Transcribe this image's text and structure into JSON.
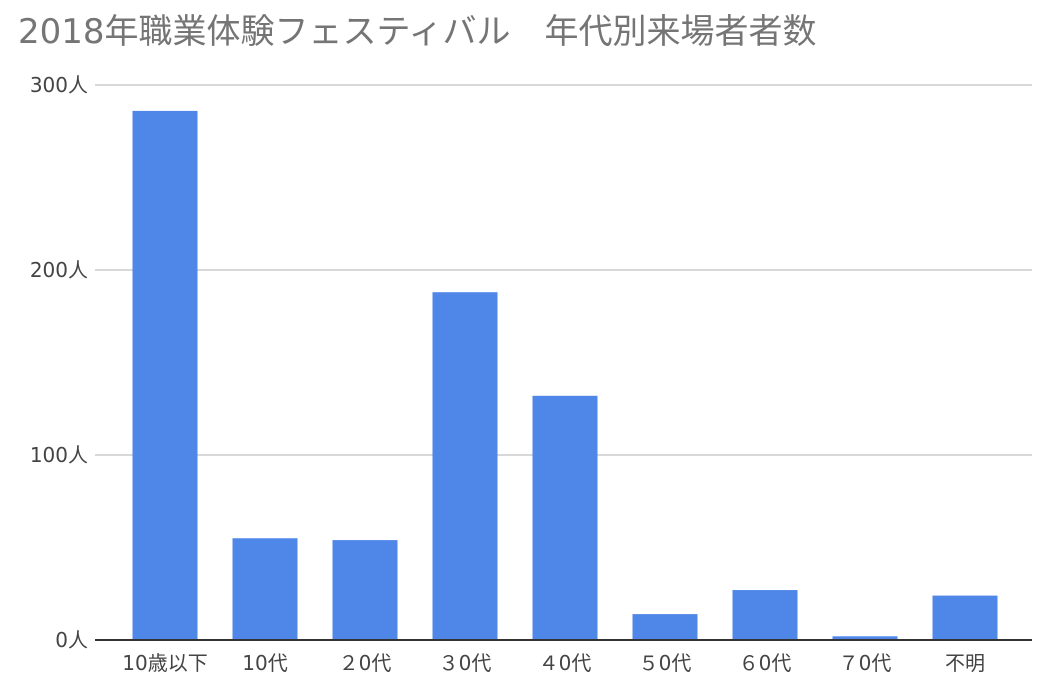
{
  "chart_data": {
    "type": "bar",
    "title": "2018年職業体験フェスティバル　年代別来場者者数",
    "categories": [
      "10歳以下",
      "10代",
      "２0代",
      "３0代",
      "４0代",
      "５0代",
      "６0代",
      "７0代",
      "不明"
    ],
    "series": [
      {
        "values": [
          286,
          55,
          54,
          188,
          132,
          14,
          27,
          2,
          24
        ],
        "color": "#4f87e8"
      }
    ],
    "y_ticks": [
      {
        "value": 0,
        "label": "0人"
      },
      {
        "value": 100,
        "label": "100人"
      },
      {
        "value": 200,
        "label": "200人"
      },
      {
        "value": 300,
        "label": "300人"
      }
    ],
    "ylim": [
      0,
      300
    ],
    "grid": true,
    "legend": "none",
    "colors": {
      "bar": "#4f87e8",
      "grid": "#cccccc",
      "axis": "#333333",
      "title": "#757575",
      "label": "#444444"
    }
  }
}
